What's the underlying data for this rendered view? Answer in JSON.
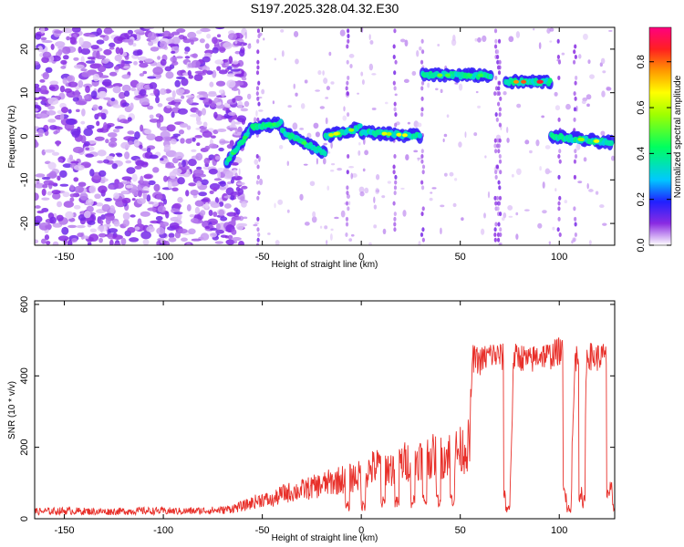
{
  "title": "S197.2025.328.04.32.E30",
  "chart_data": [
    {
      "type": "heatmap",
      "name": "spectrogram",
      "xlabel": "Height of straight line (km)",
      "ylabel": "Frequency (Hz)",
      "xlim": [
        -165,
        128
      ],
      "ylim": [
        -25,
        25
      ],
      "xticks": [
        -150,
        -100,
        -50,
        0,
        50,
        100
      ],
      "yticks": [
        -20,
        -10,
        0,
        10,
        20
      ],
      "colorbar": {
        "label": "Normalized spectral amplitude",
        "range": [
          0,
          0.95
        ],
        "ticks": [
          0.0,
          0.2,
          0.4,
          0.6,
          0.8
        ],
        "tick_labels": [
          "0.0",
          "0.2",
          "0.4",
          "0.6",
          "0.8"
        ]
      },
      "noise_region_x": [
        -165,
        -65
      ],
      "tracks": [
        {
          "x": [
            -68,
            -55
          ],
          "freq_start": -6,
          "freq_end": 2,
          "amplitude": 0.35
        },
        {
          "x": [
            -55,
            -40
          ],
          "freq_start": 2,
          "freq_end": 3,
          "amplitude": 0.4
        },
        {
          "x": [
            -40,
            -18
          ],
          "freq_start": 1,
          "freq_end": -4,
          "amplitude": 0.35
        },
        {
          "x": [
            -18,
            0
          ],
          "freq_start": 0,
          "freq_end": 2,
          "amplitude": 0.55
        },
        {
          "x": [
            0,
            30
          ],
          "freq_start": 1,
          "freq_end": 0,
          "amplitude": 0.6
        },
        {
          "x": [
            31,
            66
          ],
          "freq_start": 14,
          "freq_end": 14,
          "amplitude": 0.45
        },
        {
          "x": [
            73,
            96
          ],
          "freq_start": 12.5,
          "freq_end": 12.5,
          "amplitude": 0.8
        },
        {
          "x": [
            96,
            127
          ],
          "freq_start": 0,
          "freq_end": -1.5,
          "amplitude": 0.55
        }
      ],
      "vertical_streaks": [
        -52,
        -7,
        17,
        31,
        68,
        69,
        70,
        100,
        108
      ]
    },
    {
      "type": "line",
      "name": "snr",
      "xlabel": "Height of straight line (km)",
      "ylabel": "SNR (10 * v/v)",
      "xlim": [
        -165,
        128
      ],
      "ylim": [
        0,
        610
      ],
      "xticks": [
        -150,
        -100,
        -50,
        0,
        50,
        100
      ],
      "yticks": [
        0,
        200,
        400,
        600
      ],
      "series": [
        {
          "name": "SNR",
          "color": "#e8302a",
          "x": [
            -165,
            -150,
            -130,
            -110,
            -90,
            -70,
            -60,
            -50,
            -45,
            -40,
            -30,
            -20,
            -10,
            0,
            5,
            10,
            15,
            20,
            25,
            30,
            35,
            40,
            45,
            50,
            53,
            55,
            56,
            60,
            65,
            70,
            72,
            73,
            75,
            77,
            80,
            85,
            90,
            95,
            100,
            103,
            104,
            106,
            108,
            110,
            112,
            114,
            118,
            122,
            125,
            126,
            127,
            128
          ],
          "values": [
            20,
            22,
            20,
            22,
            21,
            24,
            35,
            55,
            50,
            70,
            80,
            95,
            110,
            120,
            140,
            150,
            140,
            155,
            165,
            170,
            175,
            170,
            185,
            190,
            200,
            210,
            450,
            440,
            460,
            455,
            450,
            70,
            65,
            450,
            455,
            440,
            460,
            455,
            470,
            460,
            75,
            70,
            450,
            455,
            70,
            460,
            450,
            455,
            445,
            440,
            80,
            75
          ],
          "dips": [
            [
              -8,
              -6
            ],
            [
              0,
              2
            ],
            [
              10,
              12
            ],
            [
              17,
              19
            ],
            [
              25,
              27
            ],
            [
              31,
              33
            ],
            [
              38,
              40
            ],
            [
              45,
              47
            ],
            [
              72,
              75
            ],
            [
              102,
              106
            ],
            [
              110,
              113
            ],
            [
              124,
              128
            ]
          ]
        }
      ]
    }
  ]
}
